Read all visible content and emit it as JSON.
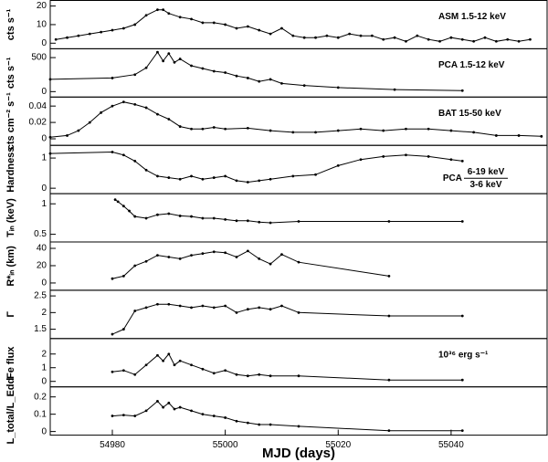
{
  "chart_data": [
    {
      "type": "line",
      "y_label": "cts s⁻¹",
      "label": "ASM 1.5-12 keV",
      "color": "#000000",
      "xlim": [
        54969,
        55057
      ],
      "ylim": [
        -3,
        23
      ],
      "yticks": [
        0,
        10,
        20
      ],
      "x": [
        54970,
        54972,
        54974,
        54976,
        54978,
        54980,
        54982,
        54984,
        54986,
        54988,
        54989,
        54990,
        54992,
        54994,
        54996,
        54998,
        55000,
        55002,
        55004,
        55006,
        55008,
        55010,
        55012,
        55014,
        55016,
        55018,
        55020,
        55022,
        55024,
        55026,
        55028,
        55030,
        55032,
        55034,
        55036,
        55038,
        55040,
        55042,
        55044,
        55046,
        55048,
        55050,
        55052,
        55054
      ],
      "values": [
        2,
        3,
        4,
        5,
        6,
        7,
        8,
        10,
        15,
        18,
        18,
        16,
        14,
        13,
        11,
        11,
        10,
        8,
        9,
        7,
        5,
        8,
        4,
        3,
        3,
        4,
        3,
        5,
        4,
        4,
        2,
        3,
        1,
        4,
        2,
        1,
        3,
        2,
        1,
        3,
        1,
        2,
        1,
        2
      ]
    },
    {
      "type": "line",
      "y_label": "cts s⁻¹",
      "label": "PCA 1.5-12 keV",
      "color": "#000000",
      "xlim": [
        54969,
        55057
      ],
      "ylim": [
        -80,
        630
      ],
      "yticks": [
        0,
        500
      ],
      "x": [
        54969,
        54980,
        54984,
        54986,
        54988,
        54989,
        54990,
        54991,
        54992,
        54994,
        54996,
        54998,
        55000,
        55002,
        55004,
        55006,
        55008,
        55010,
        55014,
        55020,
        55030,
        55042
      ],
      "values": [
        180,
        200,
        250,
        350,
        580,
        450,
        560,
        430,
        480,
        380,
        340,
        300,
        280,
        230,
        200,
        150,
        180,
        120,
        90,
        60,
        30,
        15
      ]
    },
    {
      "type": "line",
      "y_label": "cts cm⁻² s⁻¹",
      "label": "BAT 15-50 keV",
      "color": "#000000",
      "xlim": [
        54969,
        55057
      ],
      "ylim": [
        -0.008,
        0.051
      ],
      "yticks": [
        0,
        0.02,
        0.04
      ],
      "x": [
        54969,
        54972,
        54974,
        54976,
        54978,
        54980,
        54982,
        54984,
        54986,
        54988,
        54990,
        54992,
        54994,
        54996,
        54998,
        55000,
        55004,
        55008,
        55012,
        55016,
        55020,
        55024,
        55028,
        55032,
        55036,
        55040,
        55044,
        55048,
        55052,
        55056
      ],
      "values": [
        0.002,
        0.004,
        0.01,
        0.02,
        0.032,
        0.04,
        0.045,
        0.042,
        0.038,
        0.03,
        0.024,
        0.015,
        0.012,
        0.012,
        0.014,
        0.012,
        0.013,
        0.01,
        0.008,
        0.008,
        0.01,
        0.012,
        0.01,
        0.012,
        0.012,
        0.01,
        0.008,
        0.004,
        0.004,
        0.003
      ]
    },
    {
      "type": "line",
      "y_label": "Hardness",
      "label": "PCA",
      "ratio_top": "6-19 keV",
      "ratio_bottom": "3-6 keV",
      "color": "#000000",
      "xlim": [
        54969,
        55057
      ],
      "ylim": [
        -0.18,
        1.42
      ],
      "yticks": [
        0,
        1
      ],
      "x": [
        54969,
        54980,
        54982,
        54984,
        54986,
        54988,
        54990,
        54992,
        54994,
        54996,
        54998,
        55000,
        55002,
        55004,
        55006,
        55008,
        55012,
        55016,
        55020,
        55024,
        55028,
        55032,
        55036,
        55040,
        55042
      ],
      "values": [
        1.15,
        1.2,
        1.1,
        0.9,
        0.6,
        0.4,
        0.35,
        0.3,
        0.4,
        0.3,
        0.35,
        0.4,
        0.25,
        0.2,
        0.25,
        0.3,
        0.4,
        0.45,
        0.75,
        0.95,
        1.05,
        1.1,
        1.05,
        0.95,
        0.9
      ]
    },
    {
      "type": "line",
      "y_label": "Tᵢₙ (keV)",
      "log_y": true,
      "color": "#000000",
      "xlim": [
        54969,
        55057
      ],
      "ylim": [
        0.42,
        1.26
      ],
      "yticks": [
        0.5,
        1
      ],
      "x": [
        54980.5,
        54981,
        54982,
        54983,
        54984,
        54986,
        54988,
        54990,
        54992,
        54994,
        54996,
        54998,
        55000,
        55002,
        55004,
        55006,
        55008,
        55013,
        55029,
        55042
      ],
      "values": [
        1.1,
        1.05,
        0.95,
        0.85,
        0.75,
        0.72,
        0.78,
        0.8,
        0.76,
        0.75,
        0.72,
        0.72,
        0.7,
        0.68,
        0.68,
        0.66,
        0.65,
        0.67,
        0.67,
        0.67
      ]
    },
    {
      "type": "line",
      "y_label": "R*ᵢₙ (km)",
      "color": "#000000",
      "xlim": [
        54969,
        55057
      ],
      "ylim": [
        -8.4,
        47.4
      ],
      "yticks": [
        0,
        20,
        40
      ],
      "x": [
        54980,
        54982,
        54984,
        54986,
        54988,
        54990,
        54992,
        54994,
        54996,
        54998,
        55000,
        55002,
        55004,
        55006,
        55008,
        55010,
        55013,
        55029
      ],
      "values": [
        5,
        8,
        20,
        25,
        32,
        30,
        28,
        32,
        34,
        36,
        35,
        30,
        37,
        28,
        22,
        33,
        24,
        8
      ]
    },
    {
      "type": "line",
      "y_label": "Γ",
      "color": "#000000",
      "xlim": [
        54969,
        55057
      ],
      "ylim": [
        1.22,
        2.67
      ],
      "yticks": [
        1.5,
        2,
        2.5
      ],
      "x": [
        54980,
        54982,
        54984,
        54986,
        54988,
        54990,
        54992,
        54994,
        54996,
        54998,
        55000,
        55002,
        55004,
        55006,
        55008,
        55010,
        55013,
        55029,
        55042
      ],
      "values": [
        1.35,
        1.5,
        2.05,
        2.15,
        2.25,
        2.25,
        2.2,
        2.15,
        2.2,
        2.15,
        2.2,
        2.0,
        2.1,
        2.15,
        2.1,
        2.2,
        2.0,
        1.9,
        1.9
      ]
    },
    {
      "type": "line",
      "y_label": "Fe flux",
      "label": "10³⁶ erg s⁻¹",
      "color": "#000000",
      "xlim": [
        54969,
        55057
      ],
      "ylim": [
        -0.4,
        3.13
      ],
      "yticks": [
        0,
        1,
        2
      ],
      "x": [
        54980,
        54982,
        54984,
        54986,
        54988,
        54989,
        54990,
        54991,
        54992,
        54994,
        54996,
        54998,
        55000,
        55002,
        55004,
        55006,
        55008,
        55013,
        55029,
        55042
      ],
      "values": [
        0.7,
        0.8,
        0.5,
        1.2,
        1.9,
        1.5,
        2.0,
        1.2,
        1.5,
        1.2,
        0.9,
        0.6,
        0.8,
        0.5,
        0.4,
        0.5,
        0.4,
        0.4,
        0.1,
        0.1
      ]
    },
    {
      "type": "line",
      "y_label": "L_total/L_Edd",
      "x_label": "MJD (days)",
      "color": "#000000",
      "xlim": [
        54969,
        55057
      ],
      "ylim": [
        -0.021,
        0.258
      ],
      "yticks": [
        0,
        0.1,
        0.2
      ],
      "xticks": [
        54980,
        55000,
        55020,
        55040
      ],
      "x": [
        54980,
        54982,
        54984,
        54986,
        54988,
        54989,
        54990,
        54991,
        54992,
        54994,
        54996,
        54998,
        55000,
        55002,
        55004,
        55006,
        55008,
        55013,
        55029,
        55042
      ],
      "values": [
        0.09,
        0.095,
        0.09,
        0.12,
        0.175,
        0.14,
        0.165,
        0.13,
        0.14,
        0.12,
        0.1,
        0.09,
        0.08,
        0.06,
        0.05,
        0.04,
        0.04,
        0.03,
        0.005,
        0.005
      ]
    }
  ]
}
